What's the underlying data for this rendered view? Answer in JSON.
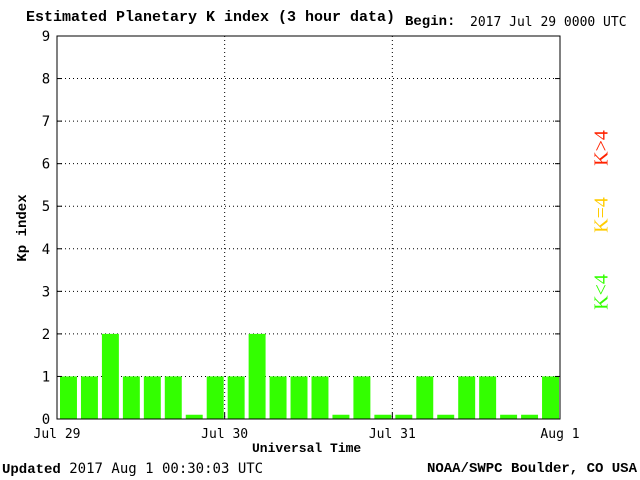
{
  "header": {
    "title": "Estimated Planetary K index (3 hour data)",
    "begin_label": "Begin:",
    "begin_value": "2017 Jul 29 0000 UTC"
  },
  "footer": {
    "updated_label": "Updated",
    "updated_value": "2017 Aug  1 00:30:03 UTC",
    "credit": "NOAA/SWPC Boulder, CO USA"
  },
  "legend": {
    "high": "K>4",
    "equal": "K=4",
    "low": "K<4"
  },
  "colors": {
    "bar_low": "#33ff00",
    "bar_equal": "#ffcc00",
    "bar_high": "#ff2200",
    "grid": "#000000"
  },
  "chart_data": {
    "type": "bar",
    "title": "Estimated Planetary K index (3 hour data)",
    "xlabel": "Universal Time",
    "ylabel": "Kp index",
    "ylim": [
      0,
      9
    ],
    "yticks": [
      0,
      1,
      2,
      3,
      4,
      5,
      6,
      7,
      8,
      9
    ],
    "x_tick_labels": [
      "Jul 29",
      "Jul 30",
      "Jul 31",
      "Aug 1"
    ],
    "grid": true,
    "bar_interval": "3 hours",
    "values": [
      1,
      1,
      2,
      1,
      1,
      1,
      0.1,
      1,
      1,
      2,
      1,
      1,
      1,
      0.1,
      1,
      0.1,
      0.1,
      1,
      0.1,
      1,
      1,
      0.1,
      0.1,
      1
    ]
  }
}
